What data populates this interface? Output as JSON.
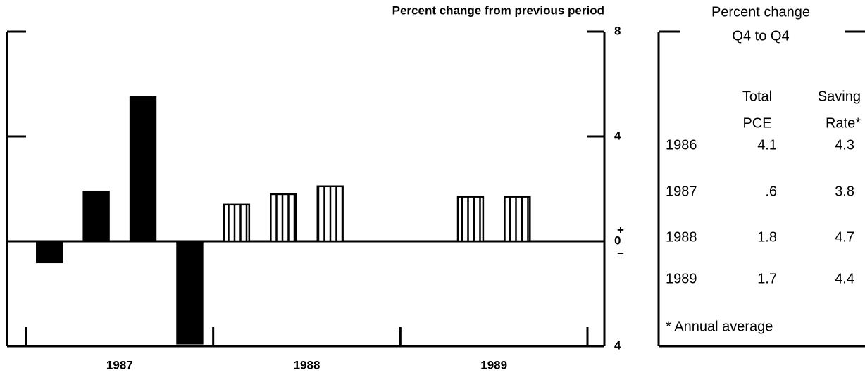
{
  "chart_data": {
    "type": "bar",
    "title": "Percent change from previous period",
    "categories": [
      null,
      null,
      null,
      null,
      null,
      null,
      null,
      null,
      null,
      null,
      null,
      null
    ],
    "x_groups": [
      "1987",
      "1988",
      "1989"
    ],
    "series": [
      {
        "color": "#000000",
        "hatched": false,
        "values": [
          -0.8,
          1.9,
          5.5,
          -3.9,
          null,
          null,
          null,
          null,
          null,
          null,
          null,
          null
        ]
      },
      {
        "color": "#ffffff",
        "hatched": true,
        "values": [
          null,
          null,
          null,
          null,
          1.4,
          1.8,
          2.1,
          null,
          null,
          1.7,
          1.7,
          null
        ]
      }
    ],
    "ylim": [
      -4,
      8
    ],
    "yticks": [
      8,
      4,
      0,
      {
        "value": -4,
        "label": "4"
      }
    ],
    "zero_signs": [
      "+",
      "–"
    ]
  },
  "table": {
    "title": [
      "Percent change",
      "Q4 to Q4"
    ],
    "columns": [
      [
        "Total",
        "PCE"
      ],
      [
        "Saving",
        "Rate*"
      ]
    ],
    "rows": [
      [
        "1986",
        "4.1",
        "4.3"
      ],
      [
        "1987",
        ".6",
        "3.8"
      ],
      [
        "1988",
        "1.8",
        "4.7"
      ],
      [
        "1989",
        "1.7",
        "4.4"
      ]
    ],
    "footnote": "* Annual average"
  }
}
